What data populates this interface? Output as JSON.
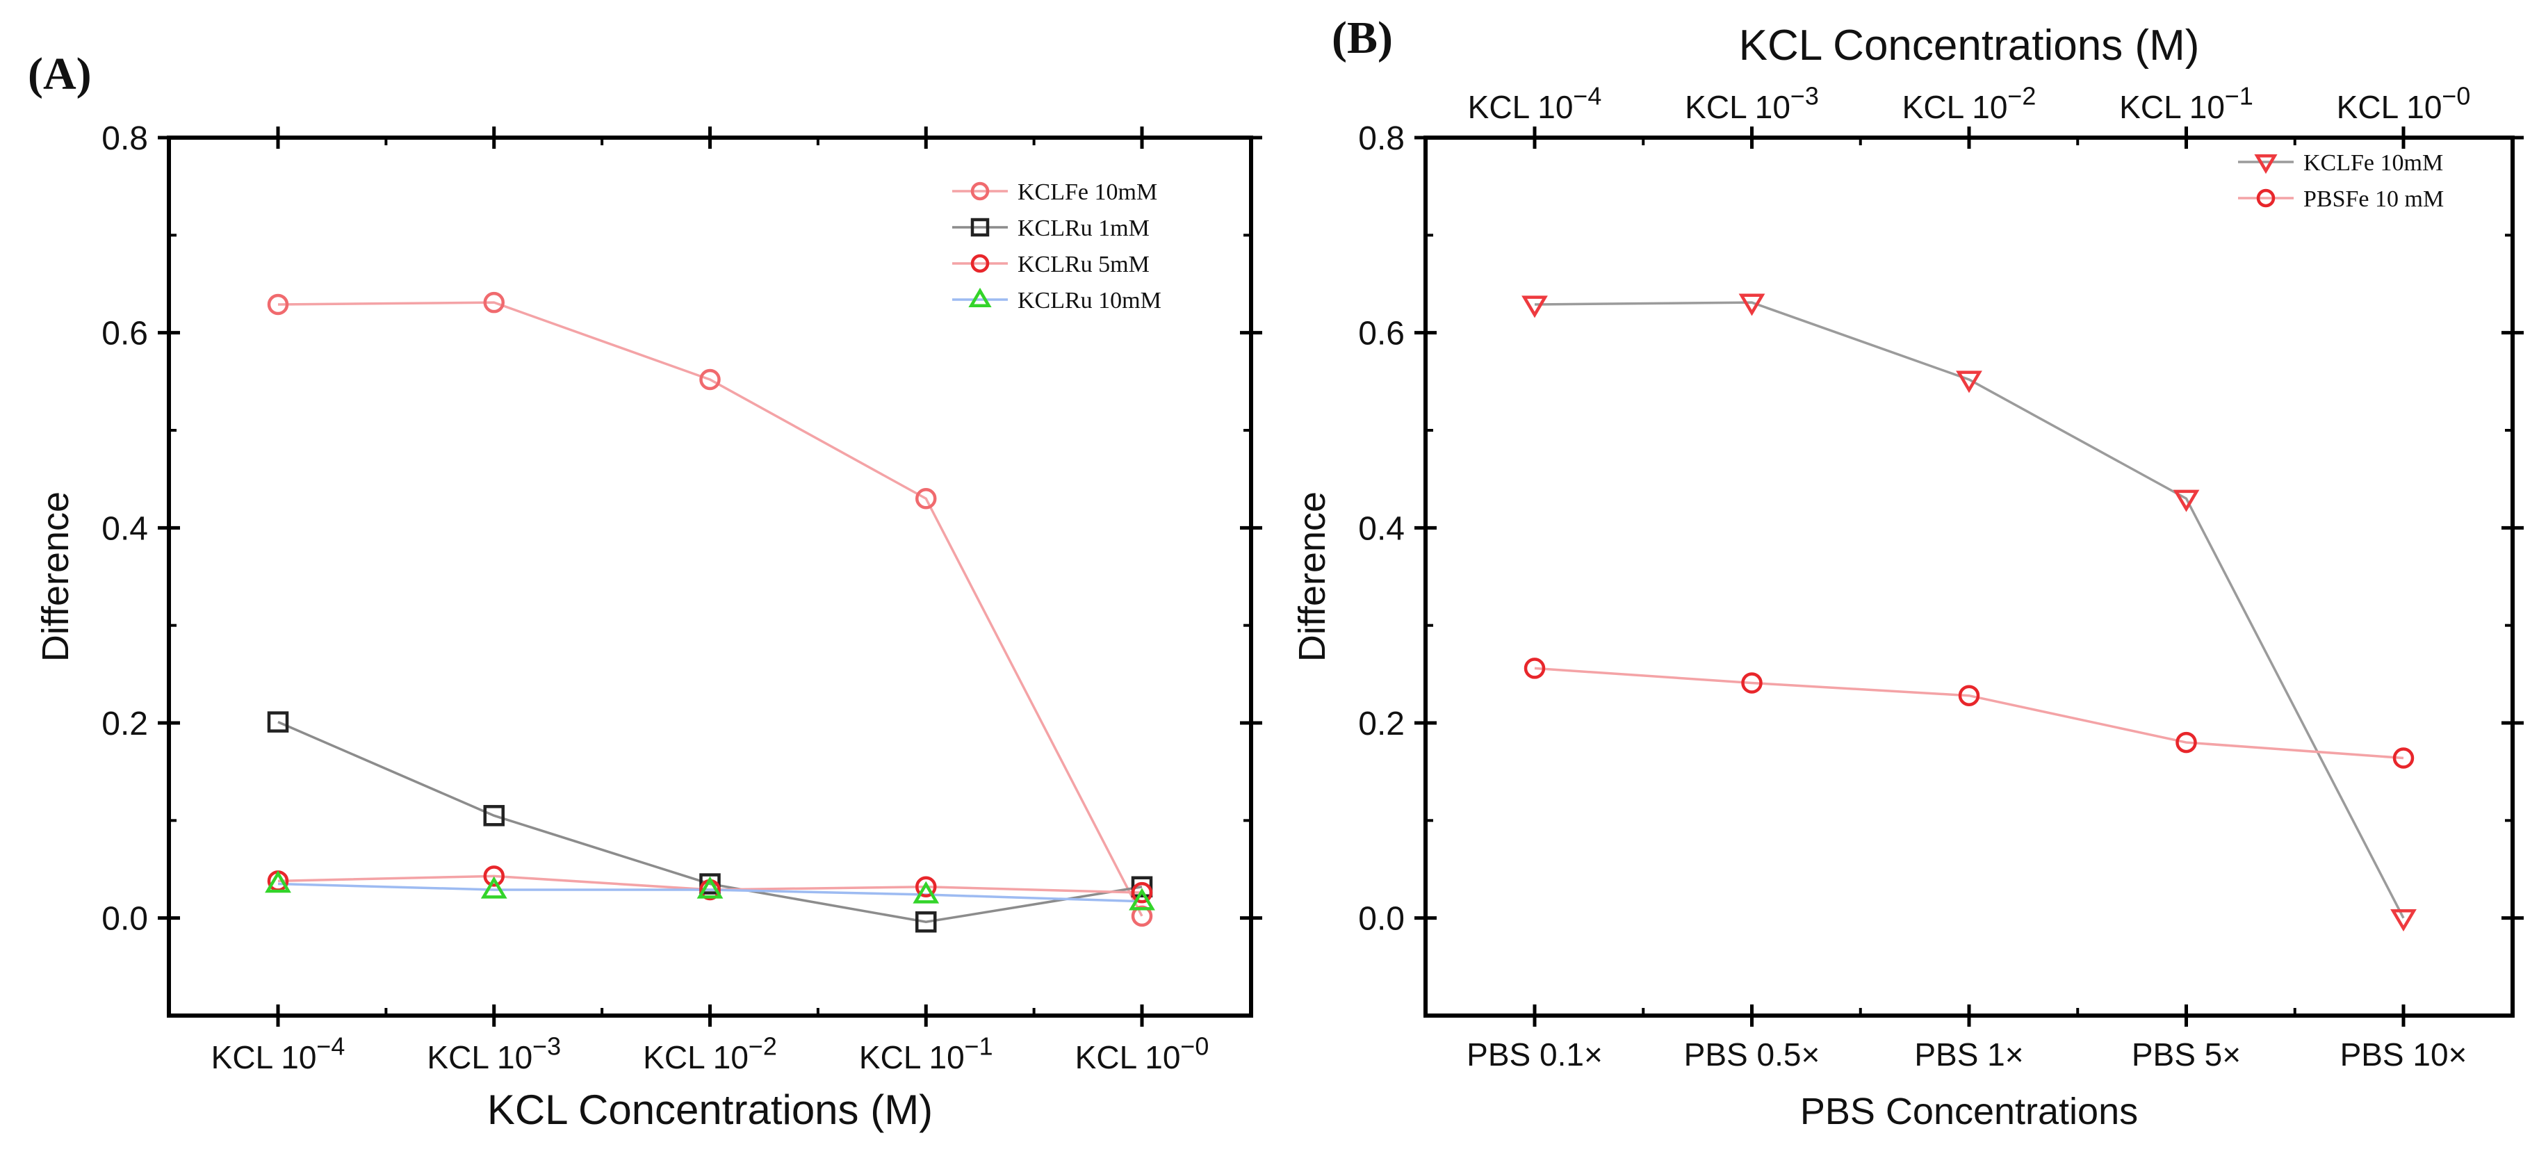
{
  "figure": {
    "panel_labels": [
      "(A)",
      "(B)"
    ]
  },
  "colors": {
    "kclfe_line": "#f4a3a6",
    "kclfe_marker": "#f06a6e",
    "kclru1_line": "#8c8c8c",
    "kclru1_marker": "#222222",
    "kclru5_line": "#f4a3a6",
    "kclru5_marker": "#e8262b",
    "kclru10_line": "#9dbbf2",
    "kclru10_marker": "#33d42a",
    "b_kclfe_line": "#9b9b9b",
    "b_kclfe_marker": "#ee3a3f",
    "b_pbsfe_line": "#f4a3a6",
    "b_pbsfe_marker": "#e8262b"
  },
  "chart_data": [
    {
      "panel": "(A)",
      "type": "line",
      "title": "",
      "xlabel": "KCL Concentrations (M)",
      "ylabel": "Difference",
      "categories": [
        {
          "base": "KCL 10",
          "exp": "−4"
        },
        {
          "base": "KCL 10",
          "exp": "−3"
        },
        {
          "base": "KCL 10",
          "exp": "−2"
        },
        {
          "base": "KCL 10",
          "exp": "−1"
        },
        {
          "base": "KCL 10",
          "exp": "−0"
        }
      ],
      "ylim": [
        -0.1,
        0.8
      ],
      "yticks": [
        0.0,
        0.2,
        0.4,
        0.6,
        0.8
      ],
      "ytick_labels": [
        "0.0",
        "0.2",
        "0.4",
        "0.6",
        "0.8"
      ],
      "grid": false,
      "legend_position": "top-right",
      "series": [
        {
          "name": "KCLFe 10mM",
          "marker": "circle",
          "line_color_key": "kclfe_line",
          "marker_color_key": "kclfe_marker",
          "values": [
            0.629,
            0.631,
            0.552,
            0.43,
            0.002
          ]
        },
        {
          "name": "KCLRu 1mM",
          "marker": "square",
          "line_color_key": "kclru1_line",
          "marker_color_key": "kclru1_marker",
          "values": [
            0.201,
            0.105,
            0.035,
            -0.004,
            0.032
          ]
        },
        {
          "name": "KCLRu 5mM",
          "marker": "circle",
          "line_color_key": "kclru5_line",
          "marker_color_key": "kclru5_marker",
          "values": [
            0.038,
            0.043,
            0.029,
            0.032,
            0.026
          ]
        },
        {
          "name": "KCLRu 10mM",
          "marker": "triangle-up",
          "line_color_key": "kclru10_line",
          "marker_color_key": "kclru10_marker",
          "values": [
            0.035,
            0.029,
            0.029,
            0.024,
            0.017
          ]
        }
      ]
    },
    {
      "panel": "(B)",
      "type": "line",
      "title": "",
      "xlabel": "PBS Concentrations",
      "x2label": "KCL Concentrations (M)",
      "ylabel": "Difference",
      "categories": [
        "PBS 0.1×",
        "PBS 0.5×",
        "PBS 1×",
        "PBS 5×",
        "PBS 10×"
      ],
      "top_categories": [
        {
          "base": "KCL 10",
          "exp": "−4"
        },
        {
          "base": "KCL 10",
          "exp": "−3"
        },
        {
          "base": "KCL 10",
          "exp": "−2"
        },
        {
          "base": "KCL 10",
          "exp": "−1"
        },
        {
          "base": "KCL 10",
          "exp": "−0"
        }
      ],
      "ylim": [
        -0.1,
        0.8
      ],
      "yticks": [
        0.0,
        0.2,
        0.4,
        0.6,
        0.8
      ],
      "ytick_labels": [
        "0.0",
        "0.2",
        "0.4",
        "0.6",
        "0.8"
      ],
      "grid": false,
      "legend_position": "top-right",
      "series": [
        {
          "name": "KCLFe 10mM",
          "marker": "triangle-down",
          "line_color_key": "b_kclfe_line",
          "marker_color_key": "b_kclfe_marker",
          "values": [
            0.629,
            0.631,
            0.552,
            0.43,
            0.0
          ]
        },
        {
          "name": "PBSFe 10 mM",
          "marker": "circle",
          "line_color_key": "b_pbsfe_line",
          "marker_color_key": "b_pbsfe_marker",
          "values": [
            0.256,
            0.241,
            0.228,
            0.18,
            0.164
          ]
        }
      ]
    }
  ]
}
